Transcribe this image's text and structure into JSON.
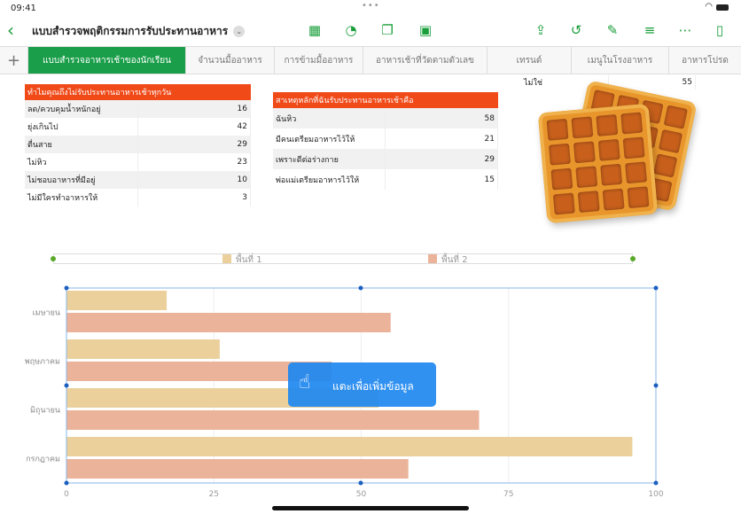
{
  "status": {
    "time": "09:41",
    "dots": "•••"
  },
  "toolbar": {
    "title": "แบบสำรวจพฤติกรรมการรับประทานอาหาร",
    "icons": [
      "table-icon",
      "chart-icon",
      "shape-icon",
      "media-icon",
      "share-icon",
      "undo-icon",
      "format-brush-icon",
      "filter-icon",
      "more-icon",
      "document-icon"
    ]
  },
  "tabs": [
    "แบบสำรวจอาหารเช้าของนักเรียน",
    "จำนวนมื้ออาหาร",
    "การข้ามมื้ออาหาร",
    "อาหารเช้าที่วัดตามตัวเลข",
    "เทรนด์",
    "เมนูในโรงอาหาร",
    "อาหารโปรด"
  ],
  "table1": {
    "header": "ทำไมคุณถึงไม่รับประทานอาหารเช้าทุกวัน",
    "rows": [
      [
        "ลด/ควบคุมน้ำหนักอยู่",
        "16"
      ],
      [
        "ยุ่งเกินไป",
        "42"
      ],
      [
        "ตื่นสาย",
        "29"
      ],
      [
        "ไม่หิว",
        "23"
      ],
      [
        "ไม่ชอบอาหารที่มีอยู่",
        "10"
      ],
      [
        "ไม่มีใครทำอาหารให้",
        "3"
      ]
    ]
  },
  "table2": {
    "header": "สาเหตุหลักที่ฉันรับประทานอาหารเช้าคือ",
    "rows": [
      [
        "ฉันหิว",
        "58"
      ],
      [
        "มีคนเตรียมอาหารไว้ให้",
        "21"
      ],
      [
        "เพราะดีต่อร่างกาย",
        "29"
      ],
      [
        "พ่อแม่เตรียมอาหารไว้ให้",
        "15"
      ]
    ]
  },
  "table3": {
    "rows": [
      [
        "ไม่ใช่",
        "55"
      ]
    ]
  },
  "tooltip": {
    "label": "แตะเพื่อเพิ่มข้อมูล"
  },
  "chart_data": {
    "type": "bar",
    "orientation": "horizontal",
    "categories": [
      "เมษายน",
      "พฤษภาคม",
      "มิถุนายน",
      "กรกฎาคม"
    ],
    "series": [
      {
        "name": "พื้นที่ 1",
        "color": "#ebd09c",
        "values": [
          17,
          26,
          53,
          96
        ]
      },
      {
        "name": "พื้นที่ 2",
        "color": "#ebb39a",
        "values": [
          55,
          45,
          70,
          58
        ]
      }
    ],
    "xlim": [
      0,
      100
    ],
    "xticks": [
      "0",
      "25",
      "50",
      "75",
      "100"
    ],
    "legend": "top",
    "grid": true
  }
}
